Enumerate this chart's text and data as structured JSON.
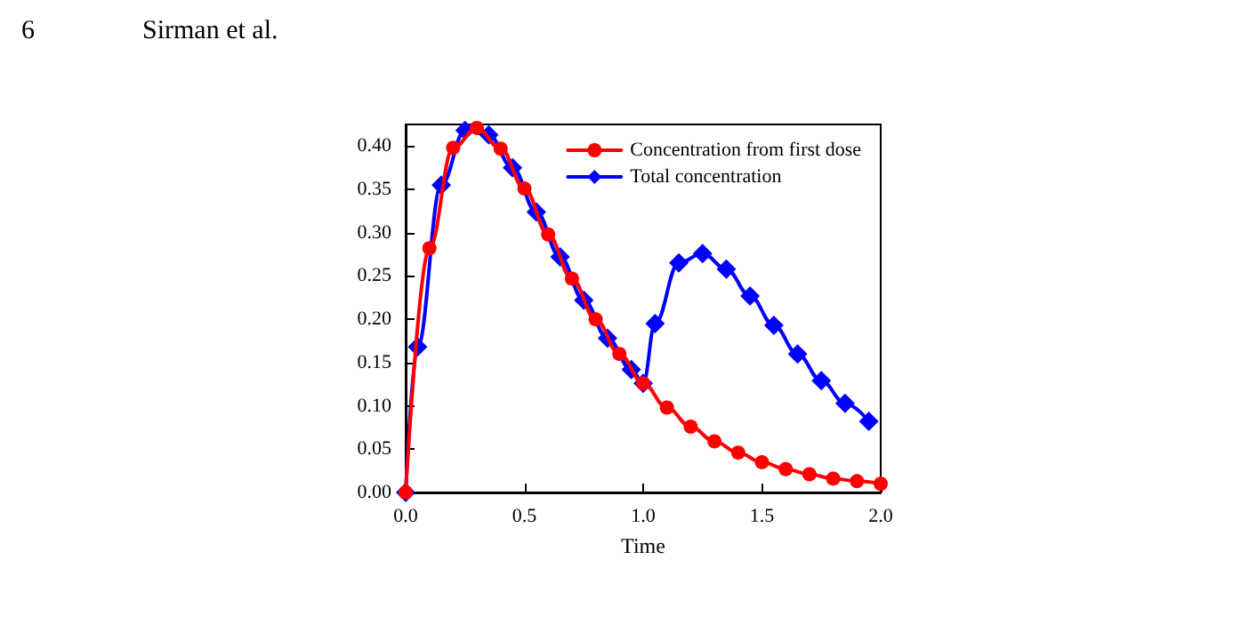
{
  "chart_data": {
    "type": "line",
    "xlabel": "Time",
    "annotations": [
      "6",
      "Sirman et al."
    ],
    "xlim": [
      0,
      2.0
    ],
    "xticks": [
      {
        "value": 0,
        "label": "0.0"
      },
      0.5,
      {
        "value": 1,
        "label": "1.0"
      },
      1.5,
      {
        "value": 2,
        "label": "2.0"
      }
    ],
    "ylim": [
      0,
      0.425
    ],
    "yticks": [
      {
        "value": 0,
        "label": "0.00"
      },
      0.05,
      {
        "value": 0.1,
        "label": "0.10"
      },
      0.15,
      {
        "value": 0.2,
        "label": "0.20"
      },
      0.25,
      {
        "value": 0.3,
        "label": "0.30"
      },
      0.35,
      {
        "value": 0.4,
        "label": "0.40"
      }
    ],
    "grid": false,
    "legend": "top right",
    "series": [
      {
        "name": "Concentration from first dose",
        "color": "#ff0000",
        "marker": "circle",
        "x": [
          0,
          0.1,
          0.2,
          0.3,
          0.4,
          0.5,
          0.6,
          0.7,
          0.8,
          0.9,
          1.0,
          1.1,
          1.2,
          1.3,
          1.4,
          1.5,
          1.6,
          1.7,
          1.8,
          1.9,
          2.0
        ],
        "values": [
          0,
          0.282,
          0.398,
          0.421,
          0.397,
          0.351,
          0.298,
          0.247,
          0.2,
          0.16,
          0.126,
          0.098,
          0.076,
          0.059,
          0.046,
          0.035,
          0.027,
          0.021,
          0.016,
          0.013,
          0.01
        ]
      },
      {
        "name": "Total concentration",
        "color": "#0000ff",
        "marker": "diamond",
        "x": [
          0,
          0.05,
          0.15,
          0.25,
          0.35,
          0.45,
          0.55,
          0.65,
          0.75,
          0.85,
          0.95,
          1.0,
          1.05,
          1.15,
          1.25,
          1.35,
          1.45,
          1.55,
          1.65,
          1.75,
          1.85,
          1.95
        ],
        "values": [
          0,
          0.168,
          0.355,
          0.418,
          0.413,
          0.375,
          0.324,
          0.272,
          0.222,
          0.178,
          0.142,
          0.126,
          0.195,
          0.265,
          0.276,
          0.258,
          0.227,
          0.193,
          0.16,
          0.129,
          0.103,
          0.082
        ]
      }
    ]
  }
}
